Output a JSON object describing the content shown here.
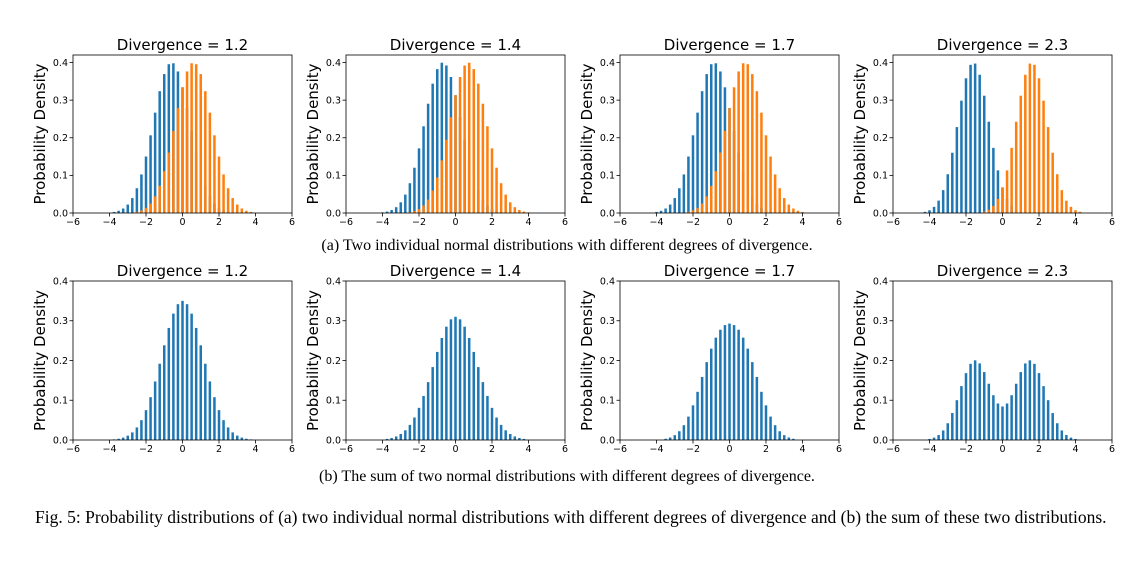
{
  "captions": {
    "a": "(a) Two individual normal distributions with different degrees of divergence.",
    "b": "(b) The sum of two normal distributions with different degrees of divergence.",
    "figure": "Fig. 5: Probability distributions of (a) two individual normal distributions with different degrees of divergence and (b) the sum of these two distributions."
  },
  "colors": {
    "series1": "#1f77b4",
    "series2": "#ff7f0e"
  },
  "chart_data": [
    {
      "type": "bar",
      "row": "a",
      "title": "Divergence = 1.2",
      "ylabel": "Probability Density",
      "xlim": [
        -6,
        6
      ],
      "ylim": [
        0,
        0.42
      ],
      "xticks": [
        "−6",
        "−4",
        "−2",
        "0",
        "2",
        "4",
        "6"
      ],
      "yticks": [
        "0.0",
        "0.1",
        "0.2",
        "0.3",
        "0.4"
      ],
      "grid": false,
      "series": [
        {
          "mean": -0.6,
          "sd": 1.0,
          "peak": 0.4,
          "color": "#1f77b4"
        },
        {
          "mean": 0.6,
          "sd": 1.0,
          "peak": 0.4,
          "color": "#ff7f0e"
        }
      ]
    },
    {
      "type": "bar",
      "row": "a",
      "title": "Divergence = 1.4",
      "ylabel": "Probability Density",
      "xlim": [
        -6,
        6
      ],
      "ylim": [
        0,
        0.42
      ],
      "xticks": [
        "−6",
        "−4",
        "−2",
        "0",
        "2",
        "4",
        "6"
      ],
      "yticks": [
        "0.0",
        "0.1",
        "0.2",
        "0.3",
        "0.4"
      ],
      "grid": false,
      "series": [
        {
          "mean": -0.7,
          "sd": 1.0,
          "peak": 0.4,
          "color": "#1f77b4"
        },
        {
          "mean": 0.7,
          "sd": 1.0,
          "peak": 0.4,
          "color": "#ff7f0e"
        }
      ]
    },
    {
      "type": "bar",
      "row": "a",
      "title": "Divergence = 1.7",
      "ylabel": "Probability Density",
      "xlim": [
        -6,
        6
      ],
      "ylim": [
        0,
        0.42
      ],
      "xticks": [
        "−6",
        "−4",
        "−2",
        "0",
        "2",
        "4",
        "6"
      ],
      "yticks": [
        "0.0",
        "0.1",
        "0.2",
        "0.3",
        "0.4"
      ],
      "grid": false,
      "series": [
        {
          "mean": -0.85,
          "sd": 1.0,
          "peak": 0.4,
          "color": "#1f77b4"
        },
        {
          "mean": 0.85,
          "sd": 1.0,
          "peak": 0.4,
          "color": "#ff7f0e"
        }
      ]
    },
    {
      "type": "bar",
      "row": "a",
      "title": "Divergence = 2.3",
      "ylabel": "Probability Density",
      "xlim": [
        -6,
        6
      ],
      "ylim": [
        0,
        0.42
      ],
      "xticks": [
        "−6",
        "−4",
        "−2",
        "0",
        "2",
        "4",
        "6"
      ],
      "yticks": [
        "0.0",
        "0.1",
        "0.2",
        "0.3",
        "0.4"
      ],
      "grid": false,
      "series": [
        {
          "mean": -1.6,
          "sd": 0.85,
          "peak": 0.4,
          "color": "#1f77b4"
        },
        {
          "mean": 1.6,
          "sd": 0.85,
          "peak": 0.4,
          "color": "#ff7f0e"
        }
      ]
    },
    {
      "type": "bar",
      "row": "b",
      "title": "Divergence = 1.2",
      "ylabel": "Probability Density",
      "xlim": [
        -6,
        6
      ],
      "ylim": [
        0,
        0.4
      ],
      "xticks": [
        "−6",
        "−4",
        "−2",
        "0",
        "2",
        "4",
        "6"
      ],
      "yticks": [
        "0.0",
        "0.1",
        "0.2",
        "0.3",
        "0.4"
      ],
      "grid": false,
      "series": [
        {
          "mean": 0,
          "sd": 1.14,
          "peak": 0.35,
          "color": "#1f77b4"
        }
      ]
    },
    {
      "type": "bar",
      "row": "b",
      "title": "Divergence = 1.4",
      "ylabel": "Probability Density",
      "xlim": [
        -6,
        6
      ],
      "ylim": [
        0,
        0.4
      ],
      "xticks": [
        "−6",
        "−4",
        "−2",
        "0",
        "2",
        "4",
        "6"
      ],
      "yticks": [
        "0.0",
        "0.1",
        "0.2",
        "0.3",
        "0.4"
      ],
      "grid": false,
      "series": [
        {
          "mean": 0,
          "sd": 1.22,
          "peak": 0.31,
          "color": "#1f77b4"
        }
      ]
    },
    {
      "type": "bar",
      "row": "b",
      "title": "Divergence = 1.7",
      "ylabel": "Probability Density",
      "xlim": [
        -6,
        6
      ],
      "ylim": [
        0,
        0.4
      ],
      "xticks": [
        "−6",
        "−4",
        "−2",
        "0",
        "2",
        "4",
        "6"
      ],
      "yticks": [
        "0.0",
        "0.1",
        "0.2",
        "0.3",
        "0.4"
      ],
      "grid": false,
      "series": [
        {
          "mean": -0.75,
          "sd": 0.95,
          "peak": 0.2,
          "color": "#1f77b4"
        },
        {
          "mean": 0.75,
          "sd": 0.95,
          "peak": 0.2,
          "color": "#1f77b4"
        }
      ],
      "combine": "sum"
    },
    {
      "type": "bar",
      "row": "b",
      "title": "Divergence = 2.3",
      "ylabel": "Probability Density",
      "xlim": [
        -6,
        6
      ],
      "ylim": [
        0,
        0.4
      ],
      "xticks": [
        "−6",
        "−4",
        "−2",
        "0",
        "2",
        "4",
        "6"
      ],
      "yticks": [
        "0.0",
        "0.1",
        "0.2",
        "0.3",
        "0.4"
      ],
      "grid": false,
      "series": [
        {
          "mean": -1.5,
          "sd": 0.85,
          "peak": 0.2,
          "color": "#1f77b4"
        },
        {
          "mean": 1.5,
          "sd": 0.85,
          "peak": 0.2,
          "color": "#1f77b4"
        }
      ],
      "combine": "sum"
    }
  ]
}
